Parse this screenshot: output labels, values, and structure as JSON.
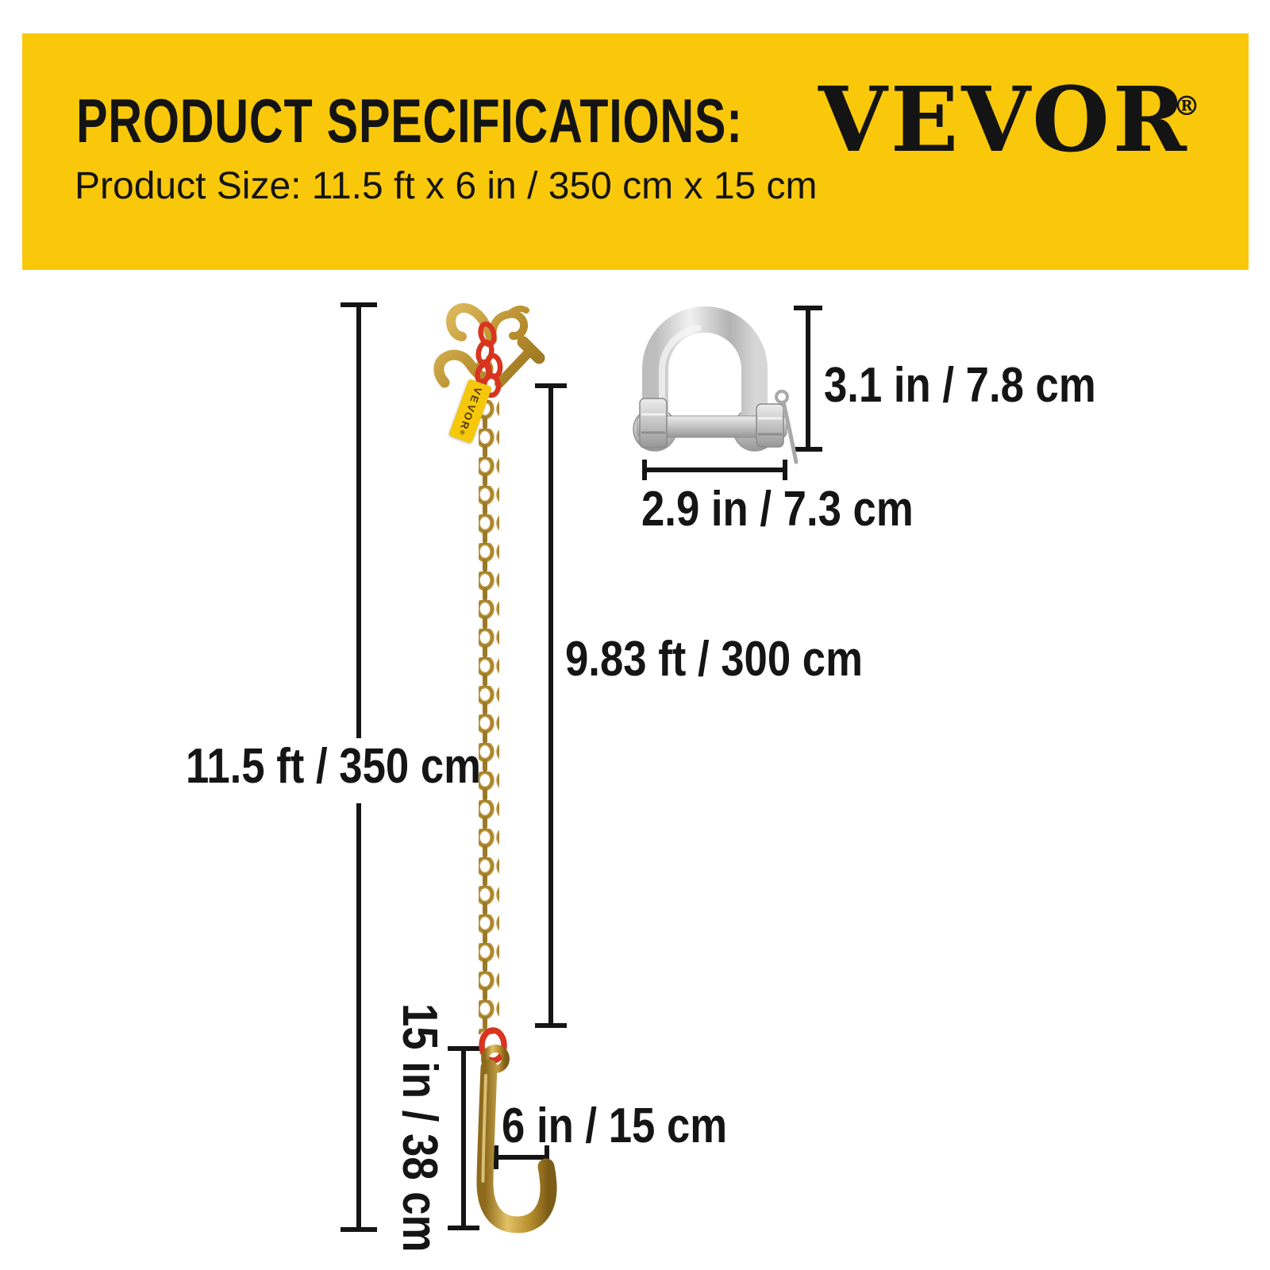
{
  "banner": {
    "title": "PRODUCT SPECIFICATIONS:",
    "subtitle": "Product Size: 11.5 ft x 6 in / 350 cm x 15 cm",
    "brand": "VEVOR",
    "registered_mark": "®",
    "bg_color": "#f9c80a",
    "text_color": "#141414"
  },
  "diagram": {
    "total_length_label": "11.5 ft / 350 cm",
    "chain_length_label": "9.83 ft / 300 cm",
    "hook_length_label": "15 in / 38 cm",
    "hook_width_label": "6 in / 15 cm",
    "shackle_height_label": "3.1 in / 7.8 cm",
    "shackle_width_label": "2.9 in / 7.3 cm",
    "tag_label": "VEVOR®",
    "colors": {
      "chain_gold": "#b8903a",
      "link_red": "#d8341f",
      "steel_silver": "#c6c6c6",
      "line_black": "#151515",
      "tag_yellow": "#f6c80c"
    }
  }
}
